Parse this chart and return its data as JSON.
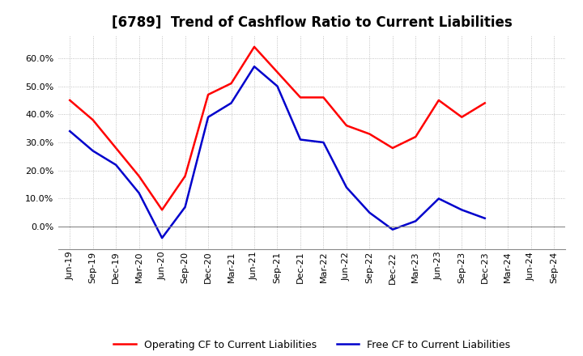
{
  "title": "[6789]  Trend of Cashflow Ratio to Current Liabilities",
  "x_labels": [
    "Jun-19",
    "Sep-19",
    "Dec-19",
    "Mar-20",
    "Jun-20",
    "Sep-20",
    "Dec-20",
    "Mar-21",
    "Jun-21",
    "Sep-21",
    "Dec-21",
    "Mar-22",
    "Jun-22",
    "Sep-22",
    "Dec-22",
    "Mar-23",
    "Jun-23",
    "Sep-23",
    "Dec-23",
    "Mar-24",
    "Jun-24",
    "Sep-24"
  ],
  "operating_cf": [
    0.45,
    0.38,
    0.28,
    0.18,
    0.06,
    0.18,
    0.47,
    0.51,
    0.64,
    0.55,
    0.46,
    0.46,
    0.36,
    0.33,
    0.28,
    0.32,
    0.45,
    0.39,
    0.44,
    null,
    null,
    null
  ],
  "free_cf": [
    0.34,
    0.27,
    0.22,
    0.12,
    -0.04,
    0.07,
    0.39,
    0.44,
    0.57,
    0.5,
    0.31,
    0.3,
    0.14,
    0.05,
    -0.01,
    0.02,
    0.1,
    0.06,
    0.03,
    null,
    null,
    null
  ],
  "operating_color": "#FF0000",
  "free_color": "#0000CC",
  "background_color": "#FFFFFF",
  "grid_color": "#AAAAAA",
  "ylim": [
    -0.08,
    0.68
  ],
  "yticks": [
    0.0,
    0.1,
    0.2,
    0.3,
    0.4,
    0.5,
    0.6
  ],
  "legend_operating": "Operating CF to Current Liabilities",
  "legend_free": "Free CF to Current Liabilities",
  "title_fontsize": 12,
  "tick_fontsize": 8,
  "legend_fontsize": 9,
  "linewidth": 1.8
}
